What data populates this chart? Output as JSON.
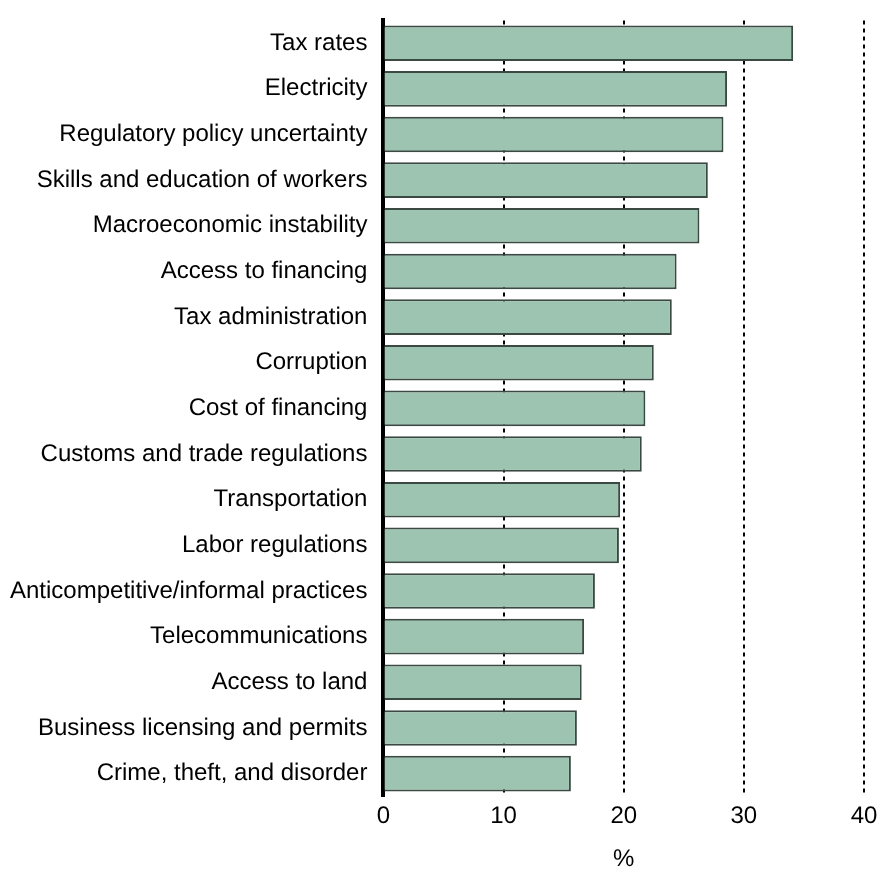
{
  "chart_data": {
    "type": "bar",
    "orientation": "horizontal",
    "xlabel": "%",
    "categories": [
      "Tax rates",
      "Electricity",
      "Regulatory policy uncertainty",
      "Skills and education of workers",
      "Macroeconomic instability",
      "Access to financing",
      "Tax administration",
      "Corruption",
      "Cost of financing",
      "Customs and trade regulations",
      "Transportation",
      "Labor regulations",
      "Anticompetitive/informal practices",
      "Telecommunications",
      "Access to land",
      "Business licensing and permits",
      "Crime, theft, and disorder"
    ],
    "values": [
      34.1,
      28.6,
      28.3,
      27.0,
      26.3,
      24.4,
      24.0,
      22.5,
      21.8,
      21.5,
      19.7,
      19.6,
      17.6,
      16.7,
      16.5,
      16.1,
      15.6
    ],
    "color": "#9dc3b1",
    "xlim": [
      0,
      40
    ],
    "xticks": [
      0,
      10,
      20,
      30,
      40
    ],
    "grid": "x",
    "line_style": "dotted"
  }
}
